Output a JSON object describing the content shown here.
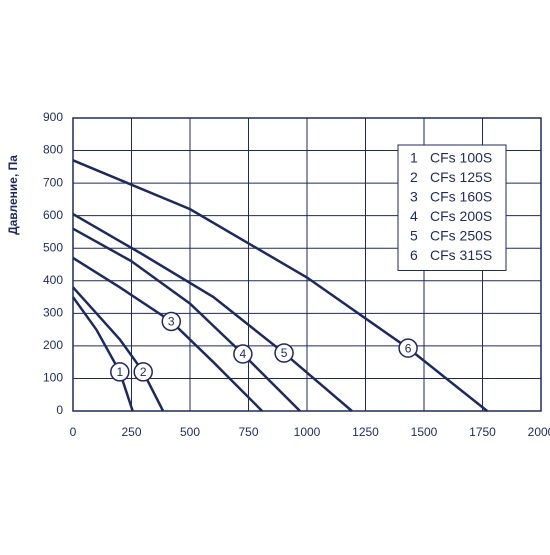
{
  "chart_data": {
    "type": "line",
    "y_label": "Давление, Па",
    "xlim": [
      0,
      2000
    ],
    "xticks": [
      0,
      250,
      500,
      750,
      1000,
      1250,
      1500,
      1750,
      2000
    ],
    "ylim": [
      0,
      900
    ],
    "yticks": [
      0,
      100,
      200,
      300,
      400,
      500,
      600,
      700,
      800,
      900
    ],
    "grid": true,
    "legend": "upper right",
    "color": "#1f2a5c",
    "series": [
      {
        "label": "1",
        "name": "CFs 100S",
        "x": [
          0,
          100,
          200,
          255
        ],
        "values": [
          350,
          250,
          120,
          0
        ]
      },
      {
        "label": "2",
        "name": "CFs 125S",
        "x": [
          0,
          100,
          200,
          300,
          385
        ],
        "values": [
          380,
          300,
          220,
          120,
          0
        ]
      },
      {
        "label": "3",
        "name": "CFs 160S",
        "x": [
          0,
          200,
          420,
          600,
          808
        ],
        "values": [
          470,
          380,
          275,
          150,
          0
        ]
      },
      {
        "label": "4",
        "name": "CFs 200S",
        "x": [
          0,
          250,
          500,
          726,
          970
        ],
        "values": [
          560,
          460,
          330,
          175,
          0
        ]
      },
      {
        "label": "5",
        "name": "CFs 250S",
        "x": [
          0,
          300,
          600,
          902,
          1192
        ],
        "values": [
          605,
          480,
          350,
          178,
          0
        ]
      },
      {
        "label": "6",
        "name": "CFs 315S",
        "x": [
          0,
          500,
          1000,
          1432,
          1770
        ],
        "values": [
          770,
          620,
          410,
          193,
          0
        ]
      }
    ]
  }
}
